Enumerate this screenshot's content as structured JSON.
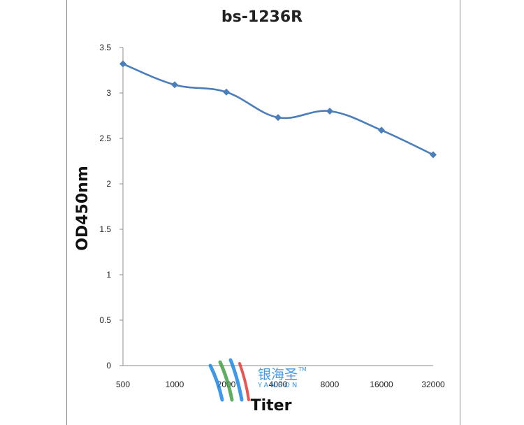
{
  "chart_data": {
    "type": "line",
    "title": "bs-1236R",
    "xlabel": "Titer",
    "ylabel": "OD450nm",
    "categories": [
      "500",
      "1000",
      "2000",
      "4000",
      "8000",
      "16000",
      "32000"
    ],
    "series": [
      {
        "values": [
          3.32,
          3.09,
          3.01,
          2.73,
          2.8,
          2.59,
          2.32
        ]
      }
    ],
    "ylim": [
      0,
      3.5
    ],
    "yticks": [
      "0",
      "0.5",
      "1",
      "1.5",
      "2",
      "2.5",
      "3",
      "3.5"
    ],
    "grid": false,
    "line_color": "#4a7ebb"
  },
  "watermark": {
    "brand_text": "银海圣",
    "brand_en": "YANSON",
    "tm": "TM",
    "colors": [
      "#1e88e5",
      "#43a047",
      "#e53935"
    ]
  }
}
